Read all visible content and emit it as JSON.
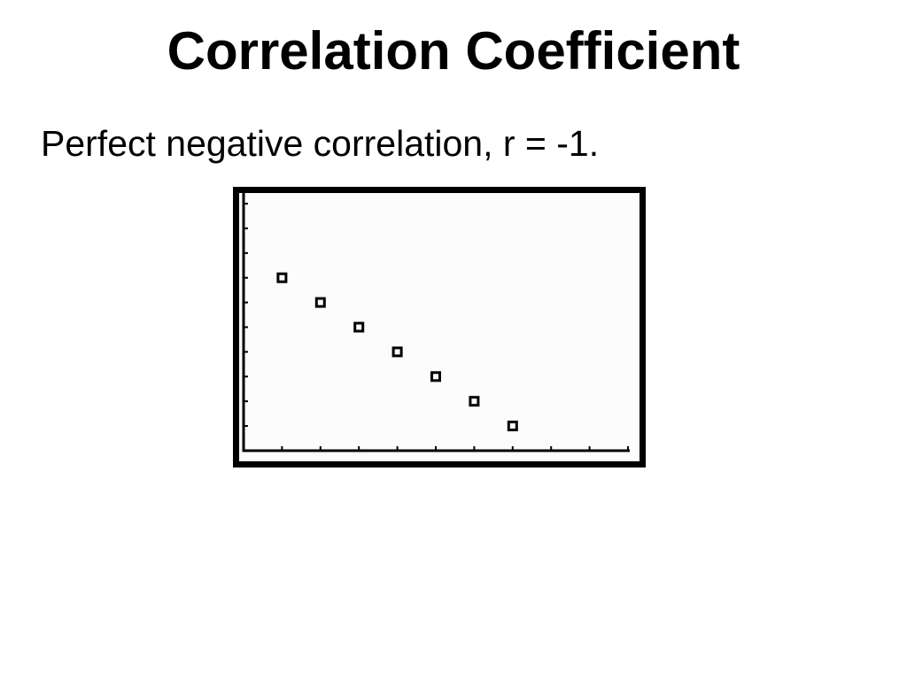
{
  "slide": {
    "title": "Correlation Coefficient",
    "text": "Perfect negative correlation, r = -1."
  },
  "colors": {
    "background": "#ffffff",
    "plot_background": "#fcfcfc",
    "ink": "#000000"
  },
  "chart_data": {
    "type": "scatter",
    "title": "",
    "xlabel": "",
    "ylabel": "",
    "xlim": [
      0,
      10
    ],
    "ylim": [
      0,
      10.5
    ],
    "x_ticks": [
      1,
      2,
      3,
      4,
      5,
      6,
      7,
      8,
      9,
      10
    ],
    "y_ticks": [
      1,
      2,
      3,
      4,
      5,
      6,
      7,
      8,
      9,
      10
    ],
    "grid": false,
    "legend": "none",
    "marker": "hollow-square",
    "series": [
      {
        "x": [
          1,
          2,
          3,
          4,
          5,
          6,
          7
        ],
        "y": [
          7,
          6,
          5,
          4,
          3,
          2,
          1
        ]
      }
    ]
  }
}
